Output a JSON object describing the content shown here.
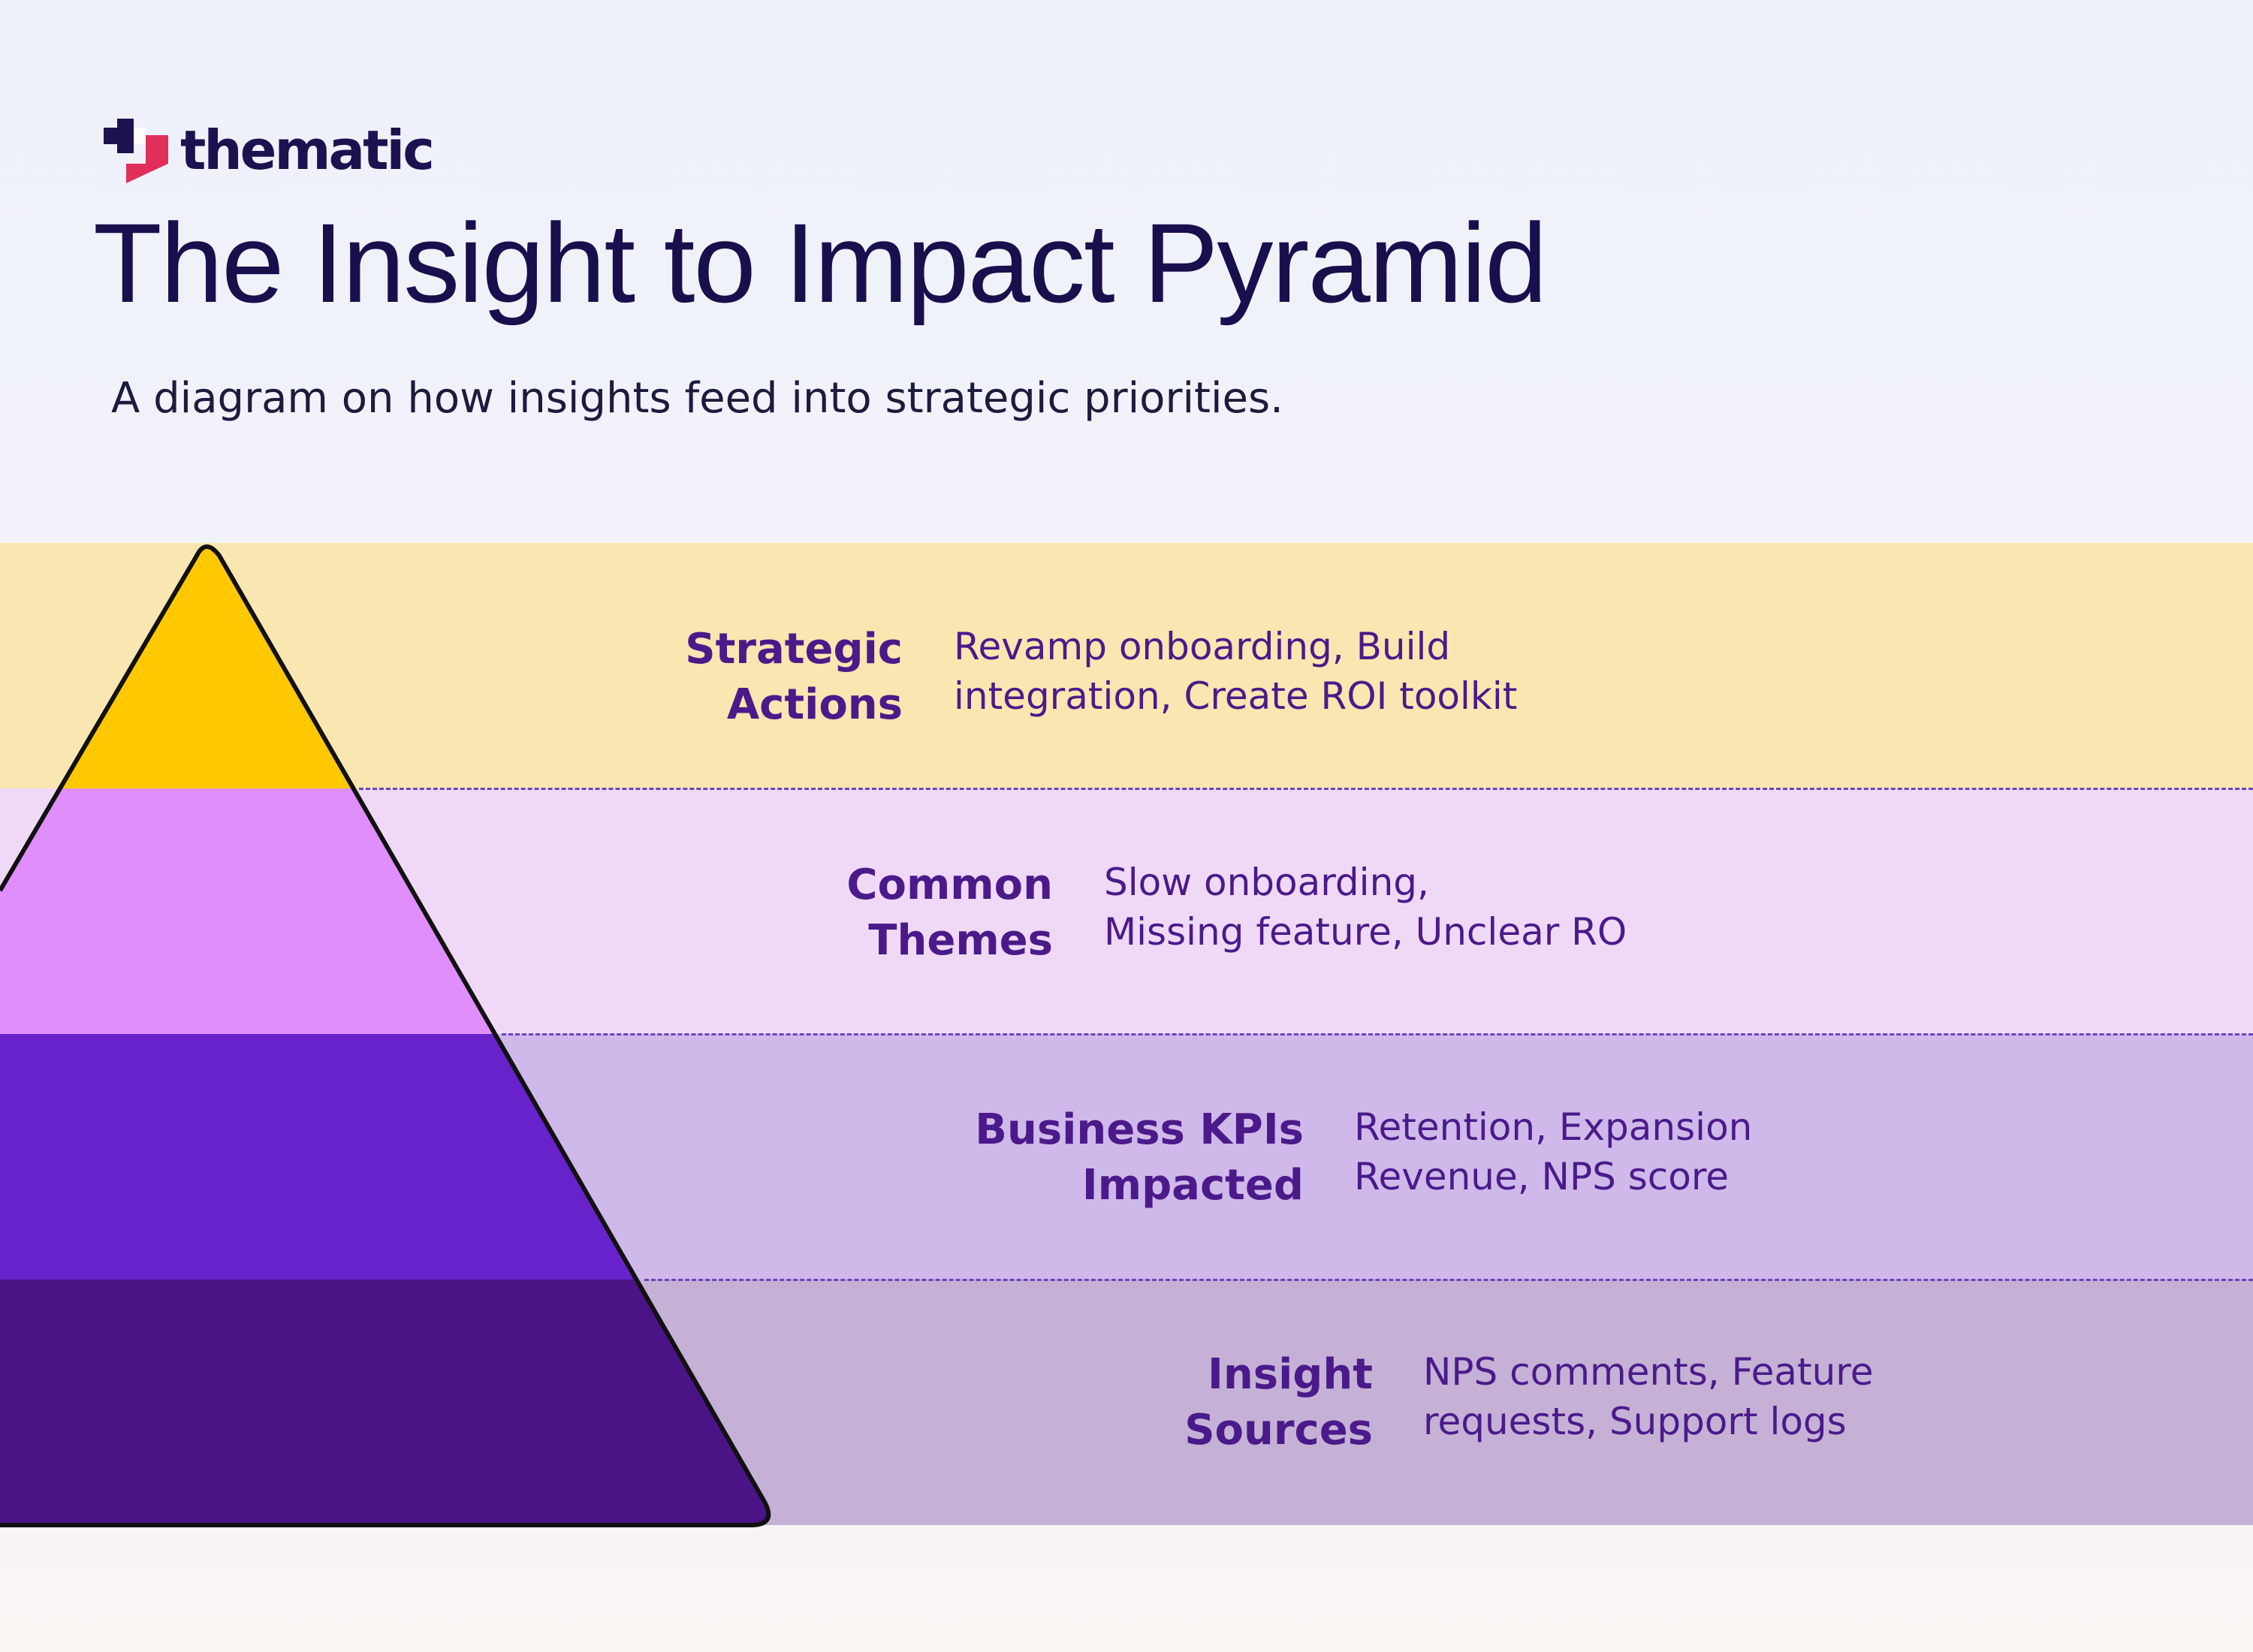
{
  "brand": {
    "name": "thematic",
    "colors": {
      "navy": "#1e1150",
      "pink": "#e0305a",
      "purple": "#4b1a8a"
    }
  },
  "header": {
    "title": "The Insight to Impact Pyramid",
    "subtitle": "A diagram on how insights feed into strategic priorities."
  },
  "pyramid": {
    "levels": [
      {
        "label_lines": [
          "Strategic",
          "Actions"
        ],
        "description_lines": [
          "Revamp onboarding, Build",
          "integration, Create ROI toolkit"
        ],
        "fill_color": "#ffc800",
        "band_color": "#fae6b0"
      },
      {
        "label_lines": [
          "Common",
          "Themes"
        ],
        "description_lines": [
          "Slow onboarding,",
          "Missing feature, Unclear RO"
        ],
        "fill_color": "#df8efc",
        "band_color": "#f0d9f7"
      },
      {
        "label_lines": [
          "Business KPIs",
          "Impacted"
        ],
        "description_lines": [
          "Retention, Expansion",
          "Revenue, NPS score"
        ],
        "fill_color": "#6722cc",
        "band_color": "#cfb9ea"
      },
      {
        "label_lines": [
          "Insight",
          "Sources"
        ],
        "description_lines": [
          "NPS comments, Feature",
          "requests, Support logs"
        ],
        "fill_color": "#4a1486",
        "band_color": "#c5b1d6"
      }
    ]
  }
}
